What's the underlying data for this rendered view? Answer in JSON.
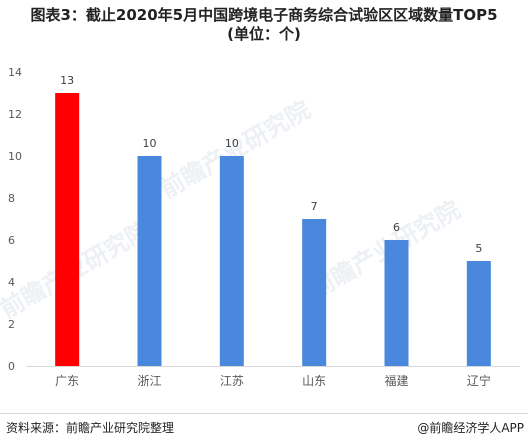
{
  "title_line1": "图表3：截止2020年5月中国跨境电子商务综合试验区区域数量TOP5",
  "title_line2": "(单位：个)",
  "source": "资料来源：前瞻产业研究院整理",
  "brand": "@前瞻经济学人APP",
  "watermark": "前瞻产业研究院",
  "colors": {
    "highlight": "#ff0000",
    "default": "#4a88dd"
  },
  "chart_data": {
    "type": "bar",
    "categories": [
      "广东",
      "浙江",
      "江苏",
      "山东",
      "福建",
      "辽宁"
    ],
    "values": [
      13,
      10,
      10,
      7,
      6,
      5
    ],
    "data_labels": [
      "13",
      "10",
      "10",
      "7",
      "6",
      "5"
    ],
    "yticks": [
      "0",
      "2",
      "4",
      "6",
      "8",
      "10",
      "12",
      "14"
    ],
    "ylim": [
      0,
      14
    ],
    "highlight_index": 0,
    "grid": false,
    "legend": "none"
  }
}
